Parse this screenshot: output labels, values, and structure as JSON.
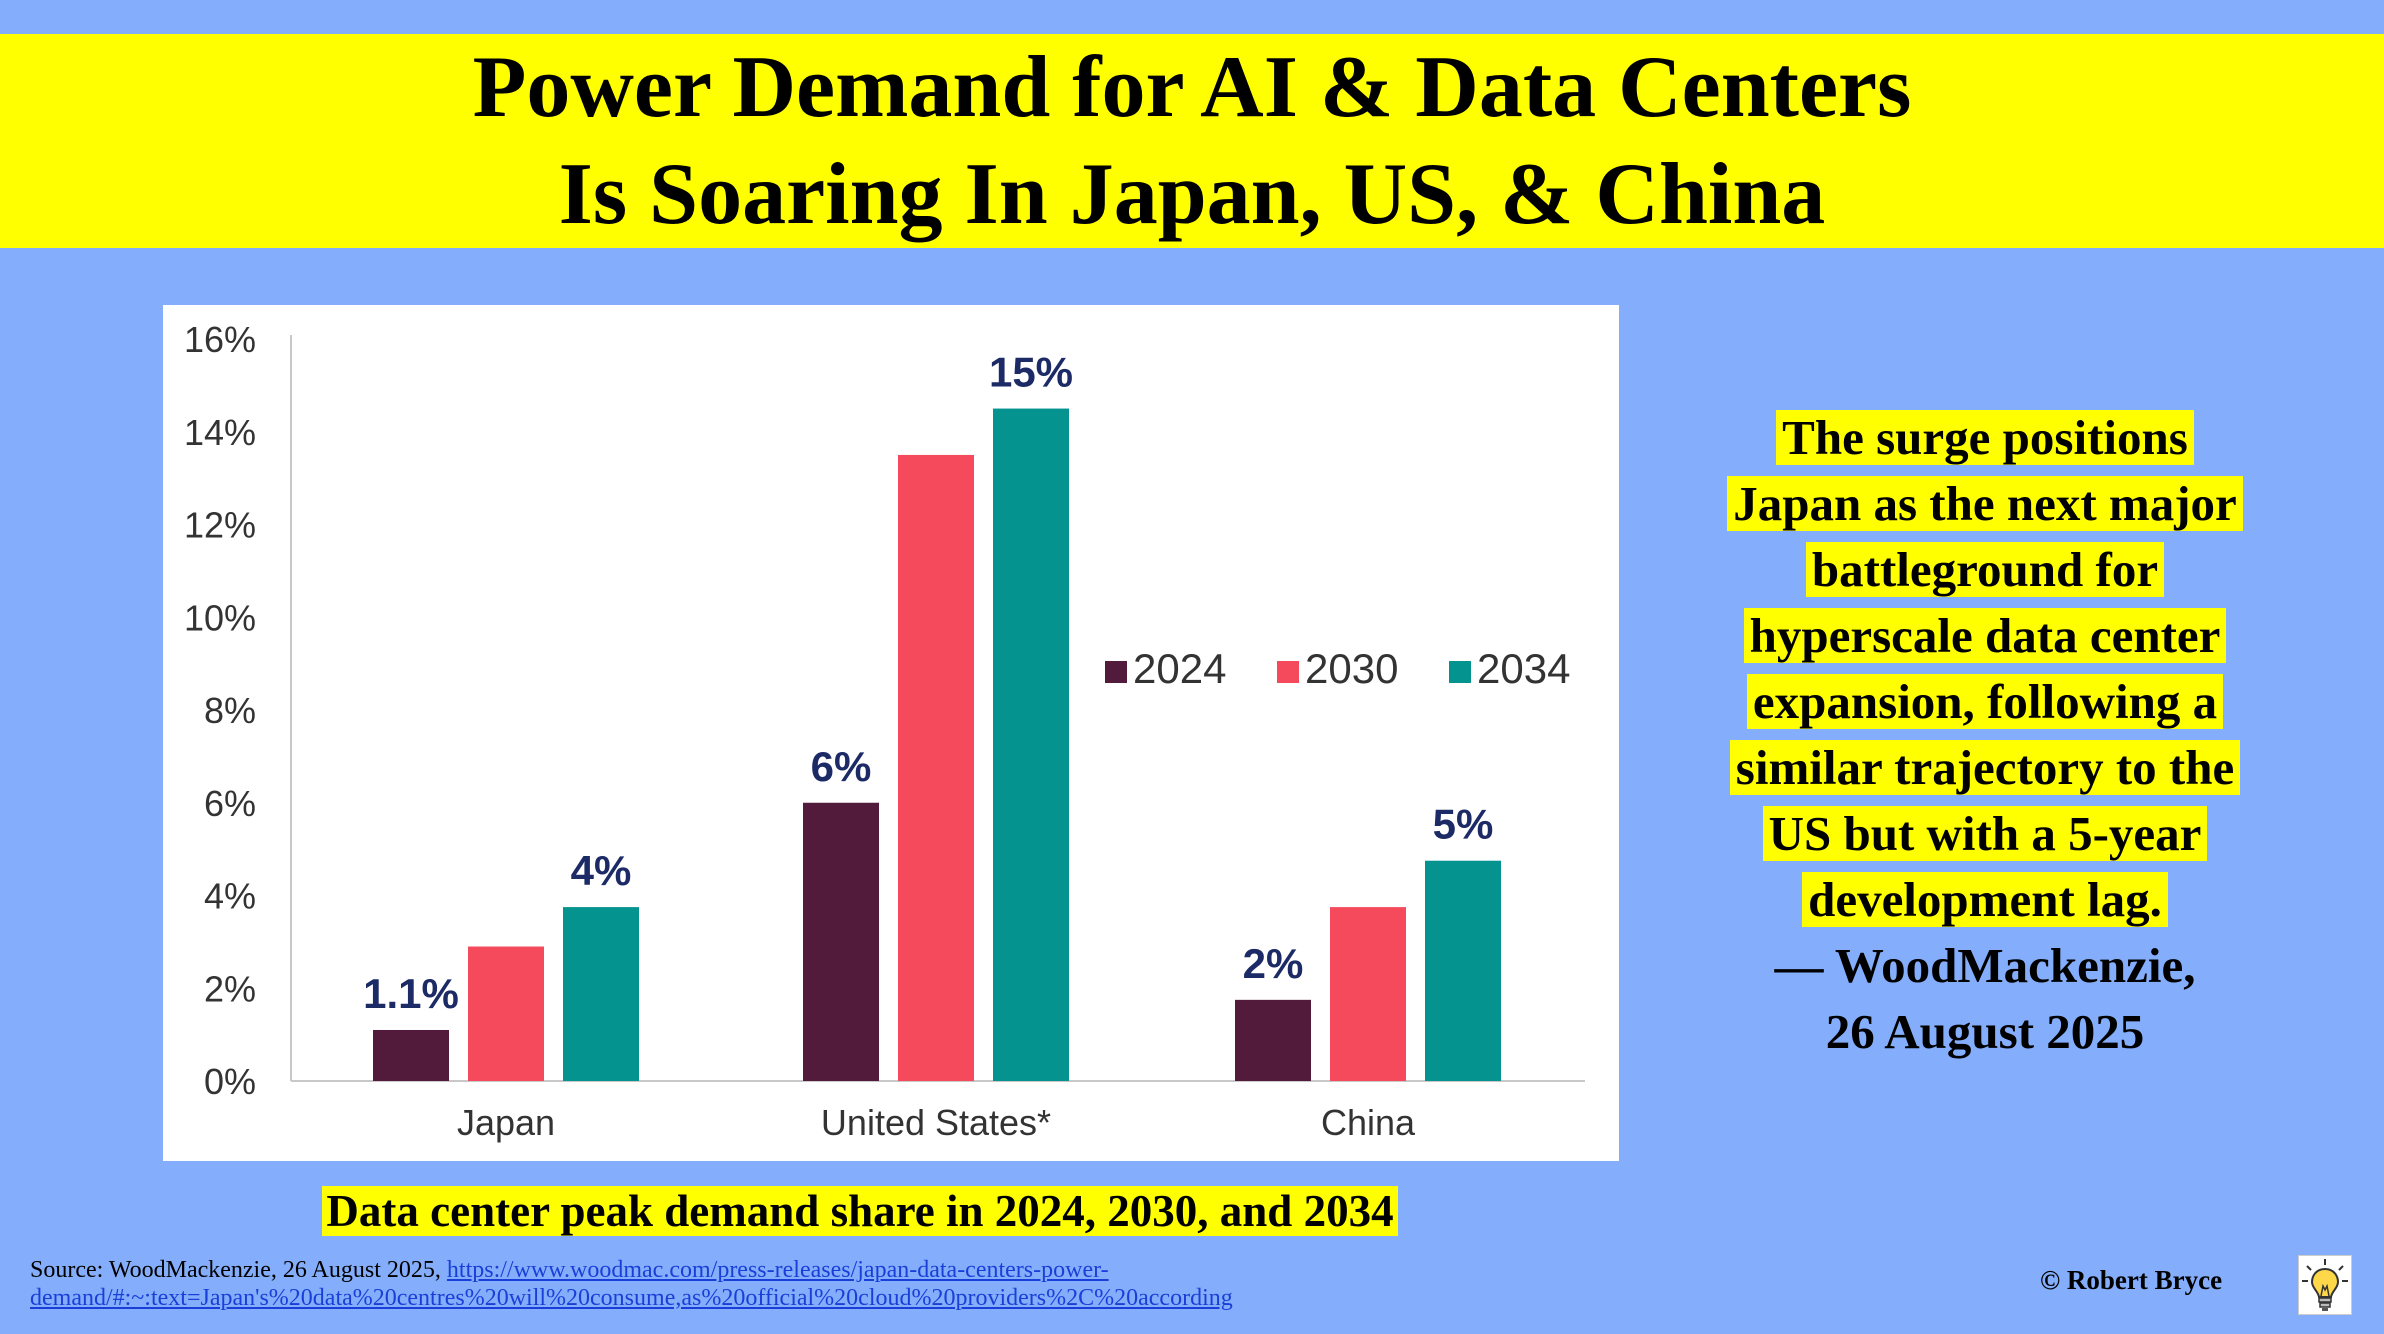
{
  "title": {
    "line1": "Power Demand for AI & Data Centers",
    "line2": "Is Soaring In Japan, US, & China"
  },
  "chart_data": {
    "type": "bar",
    "categories": [
      "Japan",
      "United States*",
      "China"
    ],
    "series": [
      {
        "name": "2024",
        "color": "#521a3b",
        "values": [
          1.1,
          6,
          1.75
        ]
      },
      {
        "name": "2030",
        "color": "#f54a5c",
        "values": [
          2.9,
          13.5,
          3.75
        ]
      },
      {
        "name": "2034",
        "color": "#059390",
        "values": [
          3.75,
          14.5,
          4.75
        ]
      }
    ],
    "data_labels": [
      {
        "category": 0,
        "series": 0,
        "text": "1.1%"
      },
      {
        "category": 0,
        "series": 2,
        "text": "4%"
      },
      {
        "category": 1,
        "series": 0,
        "text": "6%"
      },
      {
        "category": 1,
        "series": 2,
        "text": "15%"
      },
      {
        "category": 2,
        "series": 0,
        "text": "2%"
      },
      {
        "category": 2,
        "series": 2,
        "text": "5%"
      }
    ],
    "yticks": [
      "0%",
      "2%",
      "4%",
      "6%",
      "8%",
      "10%",
      "12%",
      "14%",
      "16%"
    ],
    "ylim": [
      0,
      16
    ],
    "legend_position": "right",
    "grid": false,
    "label_color": "#1c2a66",
    "axis_color": "#c8c8c8"
  },
  "caption": "Data center peak demand share in 2024, 2030, and 2034",
  "quote": {
    "lines": [
      "The surge positions",
      "Japan as the next major",
      "battleground for",
      "hyperscale data center",
      "expansion, following a",
      "similar trajectory to the",
      "US but with a 5-year",
      "development lag."
    ],
    "attribution_line1": "— WoodMackenzie,",
    "attribution_line2": "26 August 2025"
  },
  "source": {
    "prefix": "Source: WoodMackenzie, 26 August 2025, ",
    "url_line1": "https://www.woodmac.com/press-releases/japan-data-centers-power-",
    "url_line2": "demand/#:~:text=Japan's%20data%20centres%20will%20consume,as%20official%20cloud%20providers%2C%20according"
  },
  "copyright": "© Robert Bryce",
  "bulb_icon": "lightbulb-icon"
}
